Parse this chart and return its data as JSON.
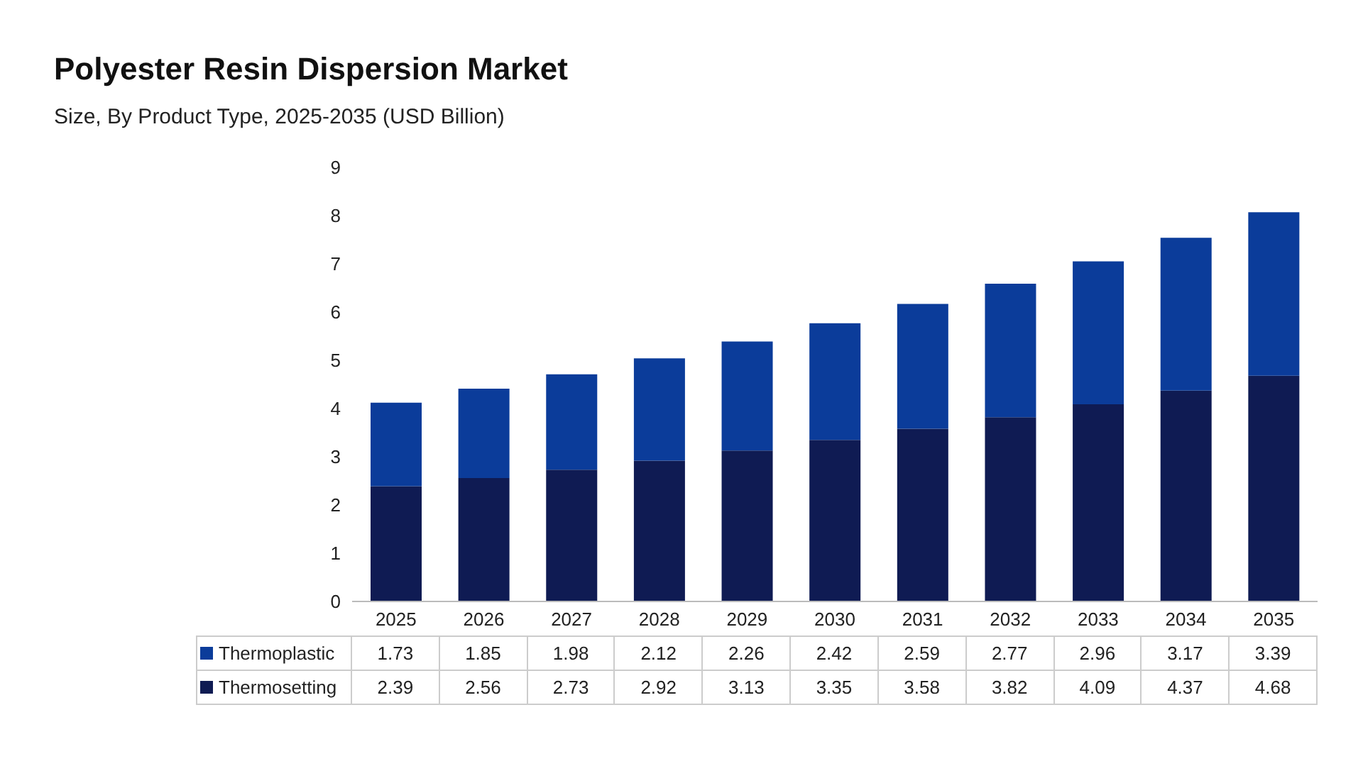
{
  "chart_data": {
    "type": "bar",
    "title": "Polyester Resin Dispersion Market",
    "subtitle": "Size, By Product Type, 2025-2035 (USD Billion)",
    "categories": [
      "2025",
      "2026",
      "2027",
      "2028",
      "2029",
      "2030",
      "2031",
      "2032",
      "2033",
      "2034",
      "2035"
    ],
    "series": [
      {
        "name": "Thermosetting",
        "color": "#0f1b53",
        "values": [
          2.39,
          2.56,
          2.73,
          2.92,
          3.13,
          3.35,
          3.58,
          3.82,
          4.09,
          4.37,
          4.68
        ]
      },
      {
        "name": "Thermoplastic",
        "color": "#0b3c9a",
        "values": [
          1.73,
          1.85,
          1.98,
          2.12,
          2.26,
          2.42,
          2.59,
          2.77,
          2.96,
          3.17,
          3.39
        ]
      }
    ],
    "stacked": true,
    "ylim": [
      0,
      9
    ],
    "yticks": [
      0,
      1,
      2,
      3,
      4,
      5,
      6,
      7,
      8,
      9
    ],
    "grid": false,
    "legend": "bottom",
    "data_labels": true
  }
}
